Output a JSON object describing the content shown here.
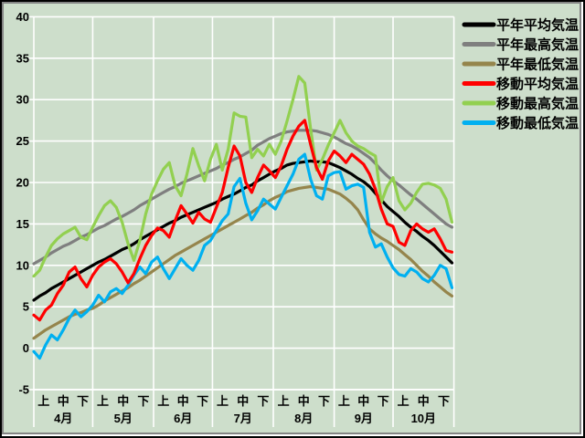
{
  "chart_data": {
    "type": "line",
    "title": "",
    "xlabel": "",
    "ylabel": "",
    "y_axis": {
      "min": -5,
      "max": 40,
      "step": 5,
      "tick_labels": [
        "40",
        "35",
        "30",
        "25",
        "20",
        "15",
        "10",
        "5",
        "0",
        "-5"
      ]
    },
    "x_axis": {
      "period_labels": [
        "上",
        "中",
        "下"
      ],
      "months": [
        {
          "label": "4月",
          "days": 30
        },
        {
          "label": "5月",
          "days": 31
        },
        {
          "label": "6月",
          "days": 30
        },
        {
          "label": "7月",
          "days": 31
        },
        {
          "label": "8月",
          "days": 31
        },
        {
          "label": "9月",
          "days": 30
        },
        {
          "label": "10月",
          "days": 31
        }
      ]
    },
    "sample_step_days": 3,
    "grid": true,
    "legend_position": "right",
    "series": [
      {
        "name": "平年平均気温",
        "color": "#000000",
        "style": "smooth",
        "values": [
          5.8,
          6.3,
          6.7,
          7.2,
          7.6,
          8.0,
          8.4,
          8.8,
          9.2,
          9.6,
          10.0,
          10.4,
          10.7,
          11.1,
          11.5,
          11.9,
          12.2,
          12.6,
          13.1,
          13.5,
          13.9,
          14.3,
          14.7,
          15.1,
          15.4,
          15.8,
          16.1,
          16.4,
          16.7,
          17.0,
          17.3,
          17.6,
          18.0,
          18.3,
          18.6,
          19.0,
          19.4,
          19.7,
          20.2,
          20.6,
          21.0,
          21.4,
          21.7,
          22.1,
          22.3,
          22.4,
          22.5,
          22.6,
          22.5,
          22.5,
          22.4,
          22.1,
          21.8,
          21.4,
          21.0,
          20.5,
          20.1,
          19.5,
          18.7,
          17.9,
          17.1,
          16.5,
          15.9,
          15.2,
          14.6,
          14.1,
          13.5,
          13.0,
          12.4,
          11.7,
          11.0,
          10.3
        ]
      },
      {
        "name": "平年最高気温",
        "color": "#7f7f7f",
        "style": "smooth",
        "values": [
          10.2,
          10.6,
          11.0,
          11.5,
          11.9,
          12.3,
          12.6,
          13.0,
          13.4,
          13.7,
          14.1,
          14.5,
          14.8,
          15.2,
          15.6,
          15.9,
          16.3,
          16.7,
          17.2,
          17.6,
          18.0,
          18.4,
          18.8,
          19.2,
          19.5,
          19.9,
          20.2,
          20.5,
          20.8,
          21.1,
          21.4,
          21.7,
          22.1,
          22.4,
          22.8,
          23.1,
          23.5,
          23.9,
          24.5,
          24.9,
          25.3,
          25.6,
          25.9,
          26.1,
          26.2,
          26.3,
          26.3,
          26.3,
          26.2,
          26.0,
          25.8,
          25.5,
          25.1,
          24.7,
          24.4,
          24.0,
          23.5,
          23.0,
          22.3,
          21.5,
          20.8,
          20.2,
          19.7,
          19.1,
          18.5,
          18.0,
          17.4,
          16.8,
          16.2,
          15.6,
          15.0,
          14.6
        ]
      },
      {
        "name": "平年最低気温",
        "color": "#95854c",
        "style": "smooth",
        "values": [
          1.2,
          1.7,
          2.2,
          2.6,
          3.0,
          3.4,
          3.8,
          4.1,
          4.3,
          4.6,
          4.8,
          5.2,
          5.7,
          6.1,
          6.5,
          6.9,
          7.3,
          7.8,
          8.2,
          8.7,
          9.2,
          9.7,
          10.2,
          10.7,
          11.2,
          11.6,
          12.0,
          12.4,
          12.8,
          13.2,
          13.6,
          14.0,
          14.4,
          14.8,
          15.2,
          15.6,
          16.0,
          16.4,
          16.9,
          17.3,
          17.8,
          18.2,
          18.5,
          18.9,
          19.1,
          19.3,
          19.4,
          19.5,
          19.4,
          19.3,
          19.2,
          18.9,
          18.6,
          18.1,
          17.5,
          16.7,
          15.5,
          14.4,
          13.8,
          13.3,
          12.9,
          12.4,
          11.9,
          11.3,
          10.7,
          10.0,
          9.3,
          8.7,
          8.0,
          7.4,
          6.8,
          6.3
        ]
      },
      {
        "name": "移動平均気温",
        "color": "#ff0000",
        "style": "daily",
        "values": [
          4.0,
          3.4,
          4.6,
          5.2,
          6.6,
          7.6,
          9.2,
          9.8,
          8.4,
          7.4,
          8.8,
          9.8,
          10.4,
          10.8,
          10.2,
          9.2,
          7.9,
          9.0,
          10.8,
          12.4,
          13.6,
          14.5,
          14.2,
          13.4,
          15.4,
          17.2,
          16.2,
          15.1,
          16.4,
          15.6,
          15.2,
          17.0,
          18.8,
          21.8,
          24.4,
          23.2,
          20.0,
          18.8,
          20.6,
          22.1,
          21.4,
          20.6,
          22.0,
          24.0,
          25.6,
          26.8,
          27.5,
          24.6,
          21.8,
          20.4,
          22.6,
          23.8,
          23.2,
          22.4,
          23.4,
          22.8,
          22.2,
          21.0,
          19.2,
          16.8,
          15.0,
          14.7,
          12.8,
          12.4,
          14.2,
          15.0,
          14.4,
          14.0,
          14.4,
          13.2,
          11.8,
          11.6
        ]
      },
      {
        "name": "移動最高気温",
        "color": "#92d050",
        "style": "daily",
        "values": [
          8.7,
          9.4,
          11.0,
          12.4,
          13.2,
          13.8,
          14.2,
          14.6,
          13.4,
          13.1,
          14.6,
          16.0,
          17.2,
          17.8,
          17.0,
          15.2,
          12.6,
          10.6,
          13.0,
          16.2,
          18.6,
          20.2,
          21.6,
          22.4,
          19.6,
          18.4,
          21.0,
          24.1,
          22.0,
          20.2,
          22.8,
          24.6,
          21.5,
          24.0,
          28.4,
          28.0,
          27.9,
          23.0,
          24.0,
          23.2,
          24.6,
          23.4,
          25.0,
          27.4,
          30.0,
          32.8,
          32.0,
          26.5,
          21.5,
          22.8,
          24.5,
          26.0,
          27.5,
          26.0,
          25.0,
          24.4,
          24.1,
          23.6,
          23.2,
          17.6,
          19.5,
          20.6,
          17.8,
          16.7,
          17.5,
          18.8,
          19.8,
          19.9,
          19.7,
          19.3,
          18.0,
          15.2
        ]
      },
      {
        "name": "移動最低気温",
        "color": "#00b0f0",
        "style": "daily",
        "values": [
          -0.4,
          -1.2,
          0.4,
          1.6,
          1.0,
          2.2,
          3.6,
          4.6,
          3.8,
          4.4,
          5.2,
          6.4,
          5.6,
          6.8,
          7.2,
          6.6,
          7.6,
          8.8,
          9.8,
          9.0,
          10.4,
          11.0,
          9.6,
          8.4,
          9.6,
          10.8,
          10.0,
          9.4,
          10.6,
          12.4,
          13.0,
          14.2,
          15.4,
          16.2,
          19.5,
          20.5,
          17.5,
          15.5,
          16.6,
          18.0,
          17.4,
          16.8,
          18.2,
          19.6,
          21.0,
          22.8,
          23.4,
          20.4,
          18.4,
          18.0,
          20.8,
          21.2,
          21.3,
          19.2,
          19.6,
          19.8,
          19.4,
          14.0,
          12.2,
          12.6,
          11.0,
          9.7,
          8.9,
          8.7,
          9.6,
          9.2,
          8.4,
          8.0,
          8.8,
          10.0,
          9.6,
          7.3
        ]
      }
    ]
  },
  "colors": {
    "background": "#cddecb",
    "gridline": "#ffffff",
    "axis_text": "#000000",
    "frame_outer": "#000000",
    "frame_mid": "#ffffff",
    "frame_inner": "#848484"
  }
}
